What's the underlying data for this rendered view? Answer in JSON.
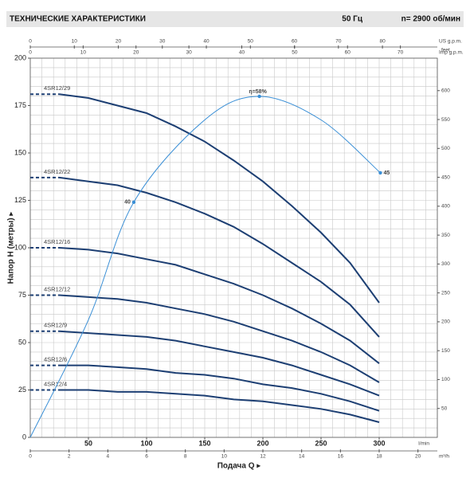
{
  "chart_data": {
    "type": "line",
    "title": "ТЕХНИЧЕСКИЕ ХАРАКТЕРИСТИКИ",
    "frequency": "50 Гц",
    "speed": "n= 2900 об/мин",
    "x_label": "Подача Q ▸",
    "y_label": "Напор H (метры) ▸",
    "x_unit": "l/min",
    "y2_unit": "feet",
    "x": [
      0,
      25,
      50,
      75,
      100,
      125,
      150,
      175,
      200,
      225,
      250,
      275,
      300
    ],
    "xlim": [
      0,
      350
    ],
    "xticks": [
      50,
      100,
      150,
      200,
      250,
      300
    ],
    "ylim": [
      0,
      200
    ],
    "yticks": [
      0,
      25,
      50,
      75,
      100,
      125,
      150,
      175,
      200
    ],
    "y2lim": [
      0,
      656.2
    ],
    "y2ticks": [
      50,
      100,
      150,
      200,
      250,
      300,
      350,
      400,
      450,
      500,
      550,
      600
    ],
    "grid": true,
    "minor_grid": {
      "x": 10,
      "y": 5
    },
    "dashed_to_x": 25,
    "extra_axes": [
      {
        "label": "US g.p.m.",
        "position": "top",
        "lim": [
          0,
          92.47
        ],
        "ticks": [
          0,
          10,
          20,
          30,
          40,
          50,
          60,
          70,
          80
        ]
      },
      {
        "label": "Imp g.p.m.",
        "position": "top",
        "lim": [
          0,
          76.99
        ],
        "ticks": [
          0,
          10,
          20,
          30,
          40,
          50,
          60,
          70
        ]
      },
      {
        "label": "m³/h",
        "position": "bottom",
        "lim": [
          0,
          21
        ],
        "ticks": [
          0,
          2,
          4,
          6,
          8,
          10,
          12,
          14,
          16,
          18,
          20
        ]
      }
    ],
    "series": [
      {
        "name": "4SR12/29",
        "color": "#1d3f73",
        "values": [
          181,
          181,
          179,
          175,
          171,
          164,
          156,
          146,
          135,
          122,
          108,
          92,
          71
        ]
      },
      {
        "name": "4SR12/22",
        "color": "#1d3f73",
        "values": [
          137,
          137,
          135,
          133,
          129,
          124,
          118,
          111,
          102,
          92,
          82,
          70,
          53
        ]
      },
      {
        "name": "4SR12/16",
        "color": "#1d3f73",
        "values": [
          100,
          100,
          99,
          97,
          94,
          91,
          86,
          81,
          75,
          68,
          60,
          51,
          39
        ]
      },
      {
        "name": "4SR12/12",
        "color": "#1d3f73",
        "values": [
          75,
          75,
          74,
          73,
          71,
          68,
          65,
          61,
          56,
          51,
          45,
          38,
          29
        ]
      },
      {
        "name": "4SR12/9",
        "color": "#1d3f73",
        "values": [
          56,
          56,
          55,
          54,
          53,
          51,
          48,
          45,
          42,
          38,
          33,
          28,
          22
        ]
      },
      {
        "name": "4SR12/6",
        "color": "#1d3f73",
        "values": [
          38,
          38,
          38,
          37,
          36,
          34,
          33,
          31,
          28,
          26,
          23,
          19,
          14
        ]
      },
      {
        "name": "4SR12/4",
        "color": "#1d3f73",
        "values": [
          25,
          25,
          25,
          24,
          24,
          23,
          22,
          20,
          19,
          17,
          15,
          12,
          8
        ]
      }
    ],
    "efficiency": {
      "color": "#3a8fd6",
      "lim": [
        0,
        64.5
      ],
      "x": [
        0,
        50,
        89,
        150,
        197,
        250,
        301
      ],
      "values": [
        0,
        20,
        40,
        54,
        58,
        54,
        45
      ],
      "value_labels": [
        null,
        null,
        "40",
        null,
        "η=58%",
        null,
        "45"
      ]
    }
  }
}
